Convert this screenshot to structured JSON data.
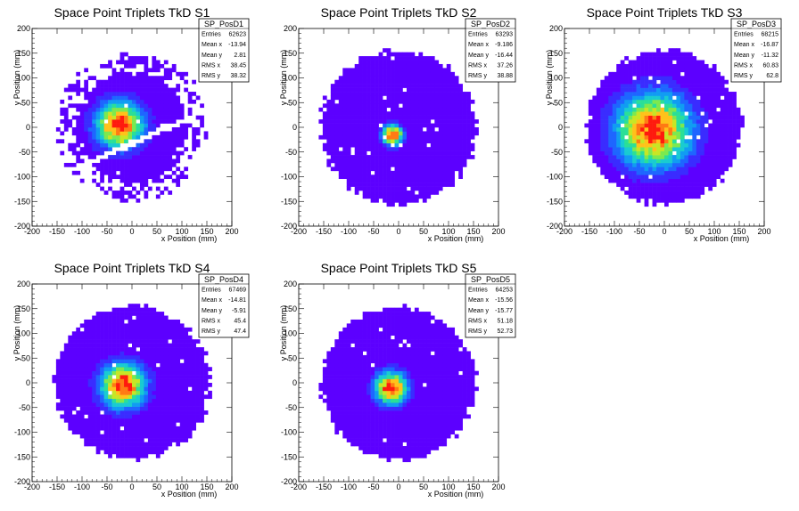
{
  "colors": {
    "background": "#ffffff",
    "frame": "#000000",
    "palette": [
      "#5c00ff",
      "#3a2cff",
      "#1e66ff",
      "#119cf2",
      "#19cbd1",
      "#2bdf97",
      "#7ce94f",
      "#c7e625",
      "#ffc21a",
      "#ff7a14",
      "#ff1a0e"
    ]
  },
  "chart_data": [
    {
      "type": "heatmap",
      "title": "Space Point Triplets TkD S1",
      "xlabel": "x Position (mm)",
      "ylabel": "y Position (mm)",
      "xlim": [
        -200,
        200
      ],
      "ylim": [
        -200,
        200
      ],
      "xticks": [
        -200,
        -150,
        -100,
        -50,
        0,
        50,
        100,
        150,
        200
      ],
      "yticks": [
        -200,
        -150,
        -100,
        -50,
        0,
        50,
        100,
        150,
        200
      ],
      "stats": {
        "name": "SP_PosD1",
        "rows": [
          {
            "label": "Entries",
            "value": "62623"
          },
          {
            "label": "Mean x",
            "value": "-13.94"
          },
          {
            "label": "Mean y",
            "value": "2.81"
          },
          {
            "label": "RMS x",
            "value": "38.45"
          },
          {
            "label": "RMS y",
            "value": "38.32"
          }
        ]
      },
      "distribution": {
        "radius": 150,
        "hot_spot": [
          -25,
          5
        ],
        "core_width": 32,
        "gap_band": true
      }
    },
    {
      "type": "heatmap",
      "title": "Space Point Triplets TkD S2",
      "xlabel": "x Position (mm)",
      "ylabel": "y Position (mm)",
      "xlim": [
        -200,
        200
      ],
      "ylim": [
        -200,
        200
      ],
      "xticks": [
        -200,
        -150,
        -100,
        -50,
        0,
        50,
        100,
        150,
        200
      ],
      "yticks": [
        -200,
        -150,
        -100,
        -50,
        0,
        50,
        100,
        150,
        200
      ],
      "stats": {
        "name": "SP_PosD2",
        "rows": [
          {
            "label": "Entries",
            "value": "63293"
          },
          {
            "label": "Mean x",
            "value": "-9.186"
          },
          {
            "label": "Mean y",
            "value": "-16.44"
          },
          {
            "label": "RMS x",
            "value": "37.26"
          },
          {
            "label": "RMS y",
            "value": "38.88"
          }
        ]
      },
      "distribution": {
        "radius": 155,
        "hot_spot": [
          -12,
          -15
        ],
        "core_width": 14,
        "gap_band": false
      }
    },
    {
      "type": "heatmap",
      "title": "Space Point Triplets TkD S3",
      "xlabel": "x Position (mm)",
      "ylabel": "y Position (mm)",
      "xlim": [
        -200,
        200
      ],
      "ylim": [
        -200,
        200
      ],
      "xticks": [
        -200,
        -150,
        -100,
        -50,
        0,
        50,
        100,
        150,
        200
      ],
      "yticks": [
        -200,
        -150,
        -100,
        -50,
        0,
        50,
        100,
        150,
        200
      ],
      "stats": {
        "name": "SP_PosD3",
        "rows": [
          {
            "label": "Entries",
            "value": "68215"
          },
          {
            "label": "Mean x",
            "value": "-16.87"
          },
          {
            "label": "Mean y",
            "value": "-11.32"
          },
          {
            "label": "RMS x",
            "value": "60.83"
          },
          {
            "label": "RMS y",
            "value": "62.8"
          }
        ]
      },
      "distribution": {
        "radius": 155,
        "hot_spot": [
          -22,
          -5
        ],
        "core_width": 50,
        "gap_band": false
      }
    },
    {
      "type": "heatmap",
      "title": "Space Point Triplets TkD S4",
      "xlabel": "x Position (mm)",
      "ylabel": "y Position (mm)",
      "xlim": [
        -200,
        200
      ],
      "ylim": [
        -200,
        200
      ],
      "xticks": [
        -200,
        -150,
        -100,
        -50,
        0,
        50,
        100,
        150,
        200
      ],
      "yticks": [
        -200,
        -150,
        -100,
        -50,
        0,
        50,
        100,
        150,
        200
      ],
      "stats": {
        "name": "SP_PosD4",
        "rows": [
          {
            "label": "Entries",
            "value": "67469"
          },
          {
            "label": "Mean x",
            "value": "-14.81"
          },
          {
            "label": "Mean y",
            "value": "-5.91"
          },
          {
            "label": "RMS x",
            "value": "45.4"
          },
          {
            "label": "RMS y",
            "value": "47.4"
          }
        ]
      },
      "distribution": {
        "radius": 155,
        "hot_spot": [
          -18,
          -5
        ],
        "core_width": 30,
        "gap_band": false
      }
    },
    {
      "type": "heatmap",
      "title": "Space Point Triplets TkD S5",
      "xlabel": "x Position (mm)",
      "ylabel": "y Position (mm)",
      "xlim": [
        -200,
        200
      ],
      "ylim": [
        -200,
        200
      ],
      "xticks": [
        -200,
        -150,
        -100,
        -50,
        0,
        50,
        100,
        150,
        200
      ],
      "yticks": [
        -200,
        -150,
        -100,
        -50,
        0,
        50,
        100,
        150,
        200
      ],
      "stats": {
        "name": "SP_PosD5",
        "rows": [
          {
            "label": "Entries",
            "value": "64253"
          },
          {
            "label": "Mean x",
            "value": "-15.56"
          },
          {
            "label": "Mean y",
            "value": "-15.77"
          },
          {
            "label": "RMS x",
            "value": "51.18"
          },
          {
            "label": "RMS y",
            "value": "52.73"
          }
        ]
      },
      "distribution": {
        "radius": 155,
        "hot_spot": [
          -15,
          -10
        ],
        "core_width": 22,
        "gap_band": false
      }
    }
  ]
}
